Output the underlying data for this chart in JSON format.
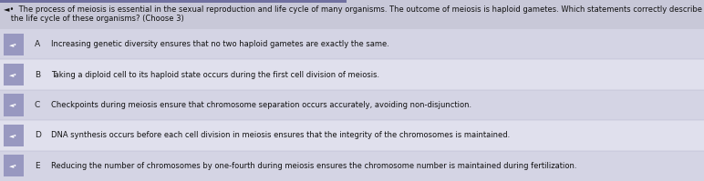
{
  "title_line1": "◄•  The process of meiosis is essential in the sexual reproduction and life cycle of many organisms. The outcome of meiosis is haploid gametes. Which statements correctly describe the importance of meiosis to",
  "title_line2": "   the life cycle of these organisms? (Choose 3)",
  "title_fontsize": 6.0,
  "top_bar_color": "#7070a0",
  "page_bg": "#c8c8d8",
  "row_bg_light": "#d4d4e4",
  "row_bg_lighter": "#e0e0ed",
  "icon_bg": "#9898c0",
  "rows": [
    {
      "letter": "A",
      "text": "Increasing genetic diversity ensures that no two haploid gametes are exactly the same."
    },
    {
      "letter": "B",
      "text": "Taking a diploid cell to its haploid state occurs during the first cell division of meiosis."
    },
    {
      "letter": "C",
      "text": "Checkpoints during meiosis ensure that chromosome separation occurs accurately, avoiding non-disjunction."
    },
    {
      "letter": "D",
      "text": "DNA synthesis occurs before each cell division in meiosis ensures that the integrity of the chromosomes is maintained."
    },
    {
      "letter": "E",
      "text": "Reducing the number of chromosomes by one-fourth during meiosis ensures the chromosome number is maintained during fertilization."
    }
  ],
  "text_fontsize": 6.0,
  "letter_fontsize": 6.5,
  "fig_width": 7.72,
  "fig_height": 1.99,
  "dpi": 100
}
